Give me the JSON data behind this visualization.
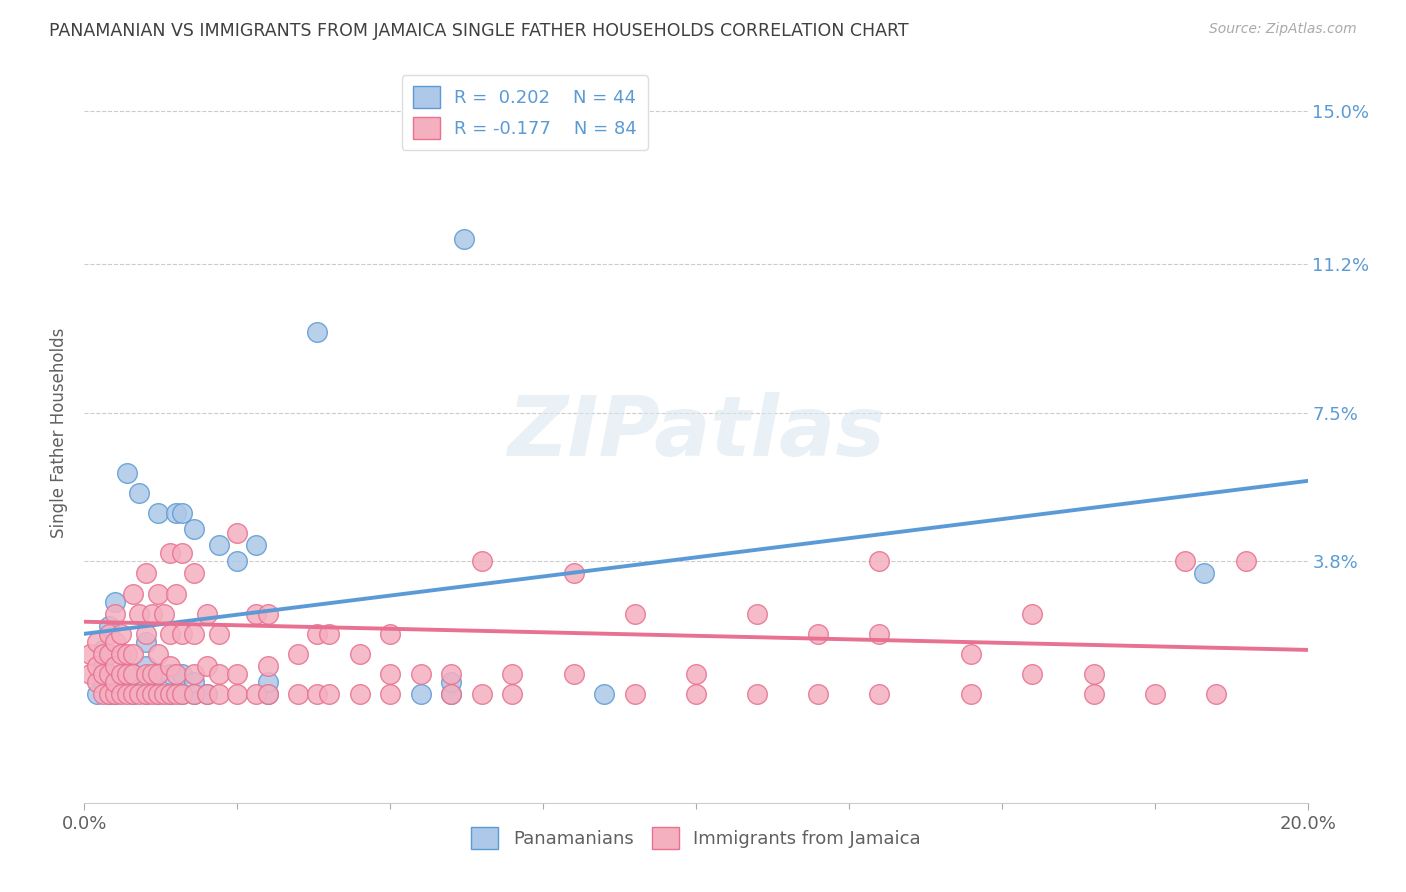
{
  "title": "PANAMANIAN VS IMMIGRANTS FROM JAMAICA SINGLE FATHER HOUSEHOLDS CORRELATION CHART",
  "source": "Source: ZipAtlas.com",
  "ylabel": "Single Father Households",
  "ytick_labels": [
    "15.0%",
    "11.2%",
    "7.5%",
    "3.8%"
  ],
  "ytick_values": [
    0.15,
    0.112,
    0.075,
    0.038
  ],
  "xmin": 0.0,
  "xmax": 0.2,
  "ymin": -0.022,
  "ymax": 0.162,
  "blue_color": "#adc8e8",
  "pink_color": "#f5b0c0",
  "line_blue": "#5b9bd5",
  "line_pink": "#e87090",
  "legend_text_color": "#5b9bd5",
  "watermark_color": "#dce8f0",
  "background_color": "#ffffff",
  "grid_color": "#cccccc",
  "title_color": "#404040",
  "axis_label_color": "#606060",
  "right_tick_color": "#5b9bd5",
  "blue_scatter": [
    [
      0.002,
      0.005
    ],
    [
      0.003,
      0.008
    ],
    [
      0.003,
      0.012
    ],
    [
      0.003,
      0.016
    ],
    [
      0.004,
      0.005
    ],
    [
      0.004,
      0.01
    ],
    [
      0.004,
      0.022
    ],
    [
      0.005,
      0.028
    ],
    [
      0.005,
      0.005
    ],
    [
      0.006,
      0.008
    ],
    [
      0.007,
      0.06
    ],
    [
      0.008,
      0.005
    ],
    [
      0.008,
      0.01
    ],
    [
      0.009,
      0.055
    ],
    [
      0.01,
      0.005
    ],
    [
      0.01,
      0.008
    ],
    [
      0.01,
      0.012
    ],
    [
      0.01,
      0.018
    ],
    [
      0.012,
      0.005
    ],
    [
      0.012,
      0.01
    ],
    [
      0.012,
      0.05
    ],
    [
      0.014,
      0.005
    ],
    [
      0.014,
      0.01
    ],
    [
      0.015,
      0.05
    ],
    [
      0.016,
      0.005
    ],
    [
      0.016,
      0.01
    ],
    [
      0.016,
      0.05
    ],
    [
      0.018,
      0.005
    ],
    [
      0.018,
      0.008
    ],
    [
      0.018,
      0.046
    ],
    [
      0.02,
      0.005
    ],
    [
      0.022,
      0.042
    ],
    [
      0.025,
      0.038
    ],
    [
      0.028,
      0.042
    ],
    [
      0.03,
      0.005
    ],
    [
      0.03,
      0.008
    ],
    [
      0.038,
      0.095
    ],
    [
      0.055,
      0.005
    ],
    [
      0.06,
      0.005
    ],
    [
      0.06,
      0.008
    ],
    [
      0.062,
      0.118
    ],
    [
      0.085,
      0.005
    ],
    [
      0.183,
      0.035
    ]
  ],
  "pink_scatter": [
    [
      0.001,
      0.01
    ],
    [
      0.001,
      0.015
    ],
    [
      0.002,
      0.008
    ],
    [
      0.002,
      0.012
    ],
    [
      0.002,
      0.018
    ],
    [
      0.003,
      0.005
    ],
    [
      0.003,
      0.01
    ],
    [
      0.003,
      0.015
    ],
    [
      0.004,
      0.005
    ],
    [
      0.004,
      0.01
    ],
    [
      0.004,
      0.015
    ],
    [
      0.004,
      0.02
    ],
    [
      0.005,
      0.005
    ],
    [
      0.005,
      0.008
    ],
    [
      0.005,
      0.012
    ],
    [
      0.005,
      0.018
    ],
    [
      0.005,
      0.025
    ],
    [
      0.006,
      0.005
    ],
    [
      0.006,
      0.01
    ],
    [
      0.006,
      0.015
    ],
    [
      0.006,
      0.02
    ],
    [
      0.007,
      0.005
    ],
    [
      0.007,
      0.01
    ],
    [
      0.007,
      0.015
    ],
    [
      0.008,
      0.005
    ],
    [
      0.008,
      0.01
    ],
    [
      0.008,
      0.015
    ],
    [
      0.008,
      0.03
    ],
    [
      0.009,
      0.005
    ],
    [
      0.009,
      0.025
    ],
    [
      0.01,
      0.005
    ],
    [
      0.01,
      0.01
    ],
    [
      0.01,
      0.02
    ],
    [
      0.01,
      0.035
    ],
    [
      0.011,
      0.005
    ],
    [
      0.011,
      0.01
    ],
    [
      0.011,
      0.025
    ],
    [
      0.012,
      0.005
    ],
    [
      0.012,
      0.01
    ],
    [
      0.012,
      0.015
    ],
    [
      0.012,
      0.03
    ],
    [
      0.013,
      0.005
    ],
    [
      0.013,
      0.025
    ],
    [
      0.014,
      0.005
    ],
    [
      0.014,
      0.012
    ],
    [
      0.014,
      0.02
    ],
    [
      0.014,
      0.04
    ],
    [
      0.015,
      0.005
    ],
    [
      0.015,
      0.01
    ],
    [
      0.015,
      0.03
    ],
    [
      0.016,
      0.005
    ],
    [
      0.016,
      0.02
    ],
    [
      0.016,
      0.04
    ],
    [
      0.018,
      0.005
    ],
    [
      0.018,
      0.01
    ],
    [
      0.018,
      0.02
    ],
    [
      0.018,
      0.035
    ],
    [
      0.02,
      0.005
    ],
    [
      0.02,
      0.012
    ],
    [
      0.02,
      0.025
    ],
    [
      0.022,
      0.005
    ],
    [
      0.022,
      0.01
    ],
    [
      0.022,
      0.02
    ],
    [
      0.025,
      0.005
    ],
    [
      0.025,
      0.01
    ],
    [
      0.025,
      0.045
    ],
    [
      0.028,
      0.005
    ],
    [
      0.028,
      0.025
    ],
    [
      0.03,
      0.005
    ],
    [
      0.03,
      0.012
    ],
    [
      0.03,
      0.025
    ],
    [
      0.035,
      0.005
    ],
    [
      0.035,
      0.015
    ],
    [
      0.038,
      0.005
    ],
    [
      0.038,
      0.02
    ],
    [
      0.04,
      0.005
    ],
    [
      0.04,
      0.02
    ],
    [
      0.045,
      0.005
    ],
    [
      0.045,
      0.015
    ],
    [
      0.05,
      0.005
    ],
    [
      0.05,
      0.01
    ],
    [
      0.05,
      0.02
    ],
    [
      0.055,
      0.01
    ],
    [
      0.06,
      0.005
    ],
    [
      0.06,
      0.01
    ],
    [
      0.065,
      0.005
    ],
    [
      0.065,
      0.038
    ],
    [
      0.07,
      0.005
    ],
    [
      0.07,
      0.01
    ],
    [
      0.08,
      0.01
    ],
    [
      0.08,
      0.035
    ],
    [
      0.09,
      0.005
    ],
    [
      0.09,
      0.025
    ],
    [
      0.1,
      0.005
    ],
    [
      0.1,
      0.01
    ],
    [
      0.11,
      0.005
    ],
    [
      0.11,
      0.025
    ],
    [
      0.12,
      0.005
    ],
    [
      0.12,
      0.02
    ],
    [
      0.13,
      0.005
    ],
    [
      0.13,
      0.02
    ],
    [
      0.13,
      0.038
    ],
    [
      0.145,
      0.005
    ],
    [
      0.145,
      0.015
    ],
    [
      0.155,
      0.01
    ],
    [
      0.155,
      0.025
    ],
    [
      0.165,
      0.005
    ],
    [
      0.165,
      0.01
    ],
    [
      0.175,
      0.005
    ],
    [
      0.18,
      0.038
    ],
    [
      0.185,
      0.005
    ],
    [
      0.19,
      0.038
    ]
  ],
  "blue_line_x": [
    0.0,
    0.2
  ],
  "blue_line_y": [
    0.02,
    0.058
  ],
  "pink_line_x": [
    0.0,
    0.2
  ],
  "pink_line_y": [
    0.023,
    0.016
  ]
}
